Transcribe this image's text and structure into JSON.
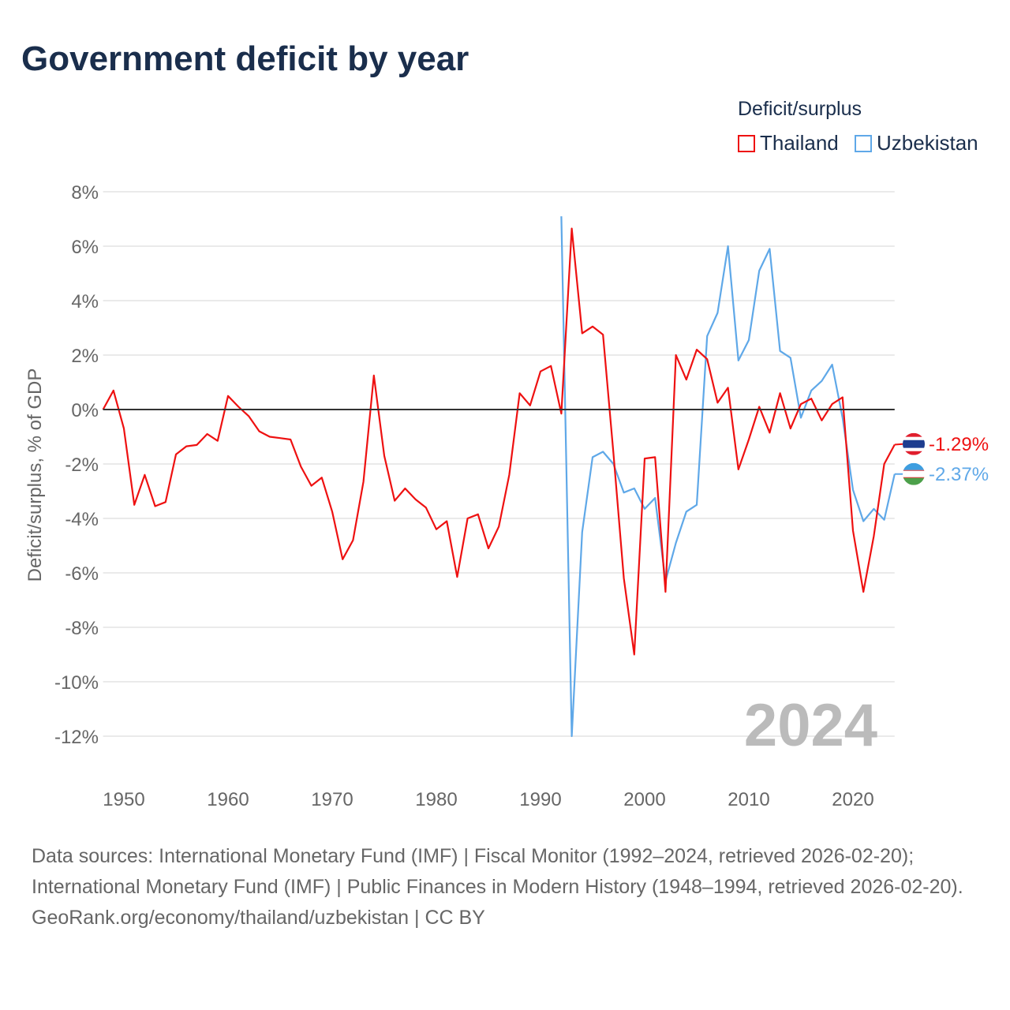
{
  "title": "Government deficit by year",
  "legend": {
    "title": "Deficit/surplus",
    "items": [
      {
        "label": "Thailand",
        "color": "#ee1111"
      },
      {
        "label": "Uzbekistan",
        "color": "#5fa8e8"
      }
    ]
  },
  "chart_data": {
    "type": "line",
    "title": "Government deficit by year",
    "xlabel": "",
    "ylabel": "Deficit/surplus, % of GDP",
    "xlim": [
      1948,
      2024
    ],
    "ylim": [
      -12,
      8
    ],
    "yticks": [
      8,
      6,
      4,
      2,
      0,
      -2,
      -4,
      -6,
      -8,
      -10,
      -12
    ],
    "ytick_labels": [
      "8%",
      "6%",
      "4%",
      "2%",
      "0%",
      "-2%",
      "-4%",
      "-6%",
      "-8%",
      "-10%",
      "-12%"
    ],
    "xticks": [
      1950,
      1960,
      1970,
      1980,
      1990,
      2000,
      2010,
      2020
    ],
    "xtick_labels": [
      "1950",
      "1960",
      "1970",
      "1980",
      "1990",
      "2000",
      "2010",
      "2020"
    ],
    "grid": true,
    "year_watermark": "2024",
    "series": [
      {
        "name": "Thailand",
        "color": "#ee1111",
        "end_label": "-1.29%",
        "start_year": 1948,
        "values": [
          0,
          0.7,
          -0.7,
          -3.5,
          -2.4,
          -3.55,
          -3.4,
          -1.65,
          -1.35,
          -1.3,
          -0.9,
          -1.15,
          0.5,
          0.1,
          -0.25,
          -0.8,
          -1.0,
          -1.05,
          -1.1,
          -2.1,
          -2.8,
          -2.5,
          -3.75,
          -5.5,
          -4.8,
          -2.65,
          1.25,
          -1.7,
          -3.35,
          -2.9,
          -3.3,
          -3.6,
          -4.4,
          -4.1,
          -6.15,
          -4.0,
          -3.85,
          -5.1,
          -4.3,
          -2.4,
          0.6,
          0.15,
          1.4,
          1.6,
          -0.15,
          6.65,
          2.8,
          3.05,
          2.75,
          -1.6,
          -6.2,
          -9.0,
          -1.8,
          -1.75,
          -6.7,
          2.0,
          1.1,
          2.2,
          1.85,
          0.25,
          0.8,
          -2.2,
          -1.1,
          0.1,
          -0.85,
          0.6,
          -0.7,
          0.2,
          0.4,
          -0.4,
          0.2,
          0.45,
          -4.45,
          -6.7,
          -4.65,
          -2.0,
          -1.29
        ]
      },
      {
        "name": "Uzbekistan",
        "color": "#5fa8e8",
        "end_label": "-2.37%",
        "start_year": 1992,
        "values": [
          7.1,
          -12.0,
          -4.5,
          -1.75,
          -1.55,
          -2.0,
          -3.05,
          -2.9,
          -3.65,
          -3.25,
          -6.3,
          -4.9,
          -3.75,
          -3.5,
          2.7,
          3.55,
          6.0,
          1.8,
          2.55,
          5.1,
          5.9,
          2.15,
          1.9,
          -0.3,
          0.7,
          1.05,
          1.65,
          -0.3,
          -2.95,
          -4.1,
          -3.65,
          -4.05,
          -2.37
        ]
      }
    ]
  },
  "footer": {
    "sources": "Data sources: International Monetary Fund (IMF) | Fiscal Monitor (1992–2024, retrieved 2026-02-20); International Monetary Fund (IMF) | Public Finances in Modern History (1948–1994, retrieved 2026-02-20).",
    "credit": "GeoRank.org/economy/thailand/uzbekistan | CC BY"
  }
}
